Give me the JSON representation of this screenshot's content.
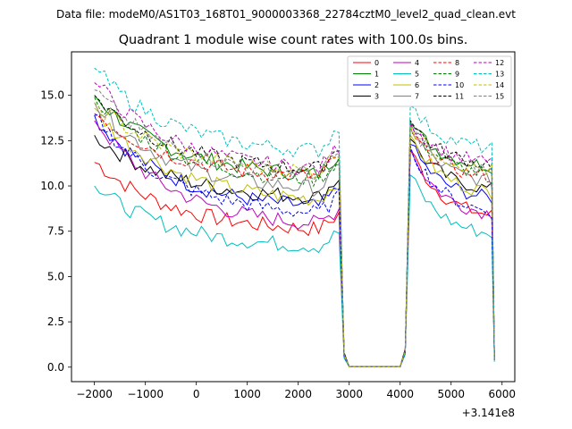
{
  "suptitle": "Data file: modeM0/AS1T03_168T01_9000003368_22784cztM0_level2_quad_clean.evt",
  "chart_data": {
    "type": "line",
    "title": "Quadrant 1 module wise count rates with 100.0s bins.",
    "xlabel": "",
    "ylabel": "",
    "offset_label": "+3.141e8",
    "xlim": [
      -2450,
      6250
    ],
    "ylim": [
      -0.8,
      17.4
    ],
    "xticks": [
      -2000,
      -1000,
      0,
      1000,
      2000,
      3000,
      4000,
      5000,
      6000
    ],
    "xtick_labels": [
      "−2000",
      "−1000",
      "0",
      "1000",
      "2000",
      "3000",
      "4000",
      "5000",
      "6000"
    ],
    "yticks": [
      0.0,
      2.5,
      5.0,
      7.5,
      10.0,
      12.5,
      15.0
    ],
    "ytick_labels": [
      "0.0",
      "2.5",
      "5.0",
      "7.5",
      "10.0",
      "12.5",
      "15.0"
    ],
    "legend_position": "top-right",
    "x_segment1": [
      -2000,
      -1900,
      -1800,
      -1700,
      -1600,
      -1500,
      -1400,
      -1300,
      -1200,
      -1100,
      -1000,
      -900,
      -800,
      -700,
      -600,
      -500,
      -400,
      -300,
      -200,
      -100,
      0,
      100,
      200,
      300,
      400,
      500,
      600,
      700,
      800,
      900,
      1000,
      1100,
      1200,
      1300,
      1400,
      1500,
      1600,
      1700,
      1800,
      1900,
      2000,
      2100,
      2200,
      2300,
      2400,
      2500,
      2600,
      2700,
      2800
    ],
    "x_gap": [
      2800,
      2900,
      3000,
      4000,
      4100,
      4200
    ],
    "x_segment2": [
      4200,
      4300,
      4400,
      4500,
      4600,
      4700,
      4800,
      4900,
      5000,
      5100,
      5200,
      5300,
      5400,
      5500,
      5600,
      5700,
      5800,
      5850
    ],
    "series": [
      {
        "name": "0",
        "color": "#ff0000",
        "dash": false,
        "start": 11.4,
        "end": 7.4,
        "peak": 12.0,
        "mid_end": 7.8,
        "first": 11.3,
        "last2": 8.1,
        "edge": 0.4
      },
      {
        "name": "1",
        "color": "#008000",
        "dash": false,
        "start": 15.0,
        "end": 10.4,
        "peak": 13.5,
        "mid_end": 11.1,
        "first": 15.0,
        "last2": 10.9,
        "edge": 0.5
      },
      {
        "name": "2",
        "color": "#0000ff",
        "dash": false,
        "start": 13.8,
        "end": 8.6,
        "peak": 12.3,
        "mid_end": 9.5,
        "first": 13.9,
        "last2": 9.1,
        "edge": 0.4
      },
      {
        "name": "3",
        "color": "#000000",
        "dash": false,
        "start": 12.8,
        "end": 9.2,
        "peak": 12.6,
        "mid_end": 10.0,
        "first": 12.8,
        "last2": 9.6,
        "edge": 0.6
      },
      {
        "name": "4",
        "color": "#bf00bf",
        "dash": false,
        "start": 13.7,
        "end": 7.6,
        "peak": 12.0,
        "mid_end": 8.3,
        "first": 13.6,
        "last2": 8.2,
        "edge": 0.4
      },
      {
        "name": "5",
        "color": "#00bfbf",
        "dash": false,
        "start": 10.0,
        "end": 6.5,
        "peak": 10.6,
        "mid_end": 7.0,
        "first": 10.0,
        "last2": 7.1,
        "edge": 0.3
      },
      {
        "name": "6",
        "color": "#bfbf00",
        "dash": false,
        "start": 14.2,
        "end": 9.0,
        "peak": 12.8,
        "mid_end": 9.6,
        "first": 14.3,
        "last2": 9.4,
        "edge": 0.5
      },
      {
        "name": "7",
        "color": "#808080",
        "dash": false,
        "start": 14.6,
        "end": 9.6,
        "peak": 13.2,
        "mid_end": 10.3,
        "first": 14.6,
        "last2": 10.0,
        "edge": 0.5
      },
      {
        "name": "8",
        "color": "#ff0000",
        "dash": true,
        "start": 14.1,
        "end": 10.3,
        "peak": 13.0,
        "mid_end": 10.6,
        "first": 14.0,
        "last2": 10.3,
        "edge": 0.5
      },
      {
        "name": "9",
        "color": "#008000",
        "dash": true,
        "start": 14.9,
        "end": 10.1,
        "peak": 13.4,
        "mid_end": 10.8,
        "first": 14.9,
        "last2": 10.4,
        "edge": 0.5
      },
      {
        "name": "10",
        "color": "#0000ff",
        "dash": true,
        "start": 13.9,
        "end": 8.2,
        "peak": 12.2,
        "mid_end": 9.0,
        "first": 13.9,
        "last2": 8.3,
        "edge": 0.4
      },
      {
        "name": "11",
        "color": "#000000",
        "dash": true,
        "start": 15.0,
        "end": 10.7,
        "peak": 13.6,
        "mid_end": 11.3,
        "first": 15.0,
        "last2": 11.0,
        "edge": 0.6
      },
      {
        "name": "12",
        "color": "#bf00bf",
        "dash": true,
        "start": 15.8,
        "end": 10.7,
        "peak": 13.5,
        "mid_end": 11.4,
        "first": 15.7,
        "last2": 11.1,
        "edge": 0.5
      },
      {
        "name": "13",
        "color": "#00bfbf",
        "dash": true,
        "start": 16.5,
        "end": 11.7,
        "peak": 14.4,
        "mid_end": 12.2,
        "first": 16.5,
        "last2": 11.9,
        "edge": 0.4
      },
      {
        "name": "14",
        "color": "#bfbf00",
        "dash": true,
        "start": 14.6,
        "end": 10.6,
        "peak": 13.3,
        "mid_end": 10.9,
        "first": 14.6,
        "last2": 10.7,
        "edge": 0.5
      },
      {
        "name": "15",
        "color": "#808080",
        "dash": true,
        "start": 15.3,
        "end": 10.4,
        "peak": 13.3,
        "mid_end": 11.0,
        "first": 15.3,
        "last2": 10.7,
        "edge": 0.5
      }
    ]
  }
}
